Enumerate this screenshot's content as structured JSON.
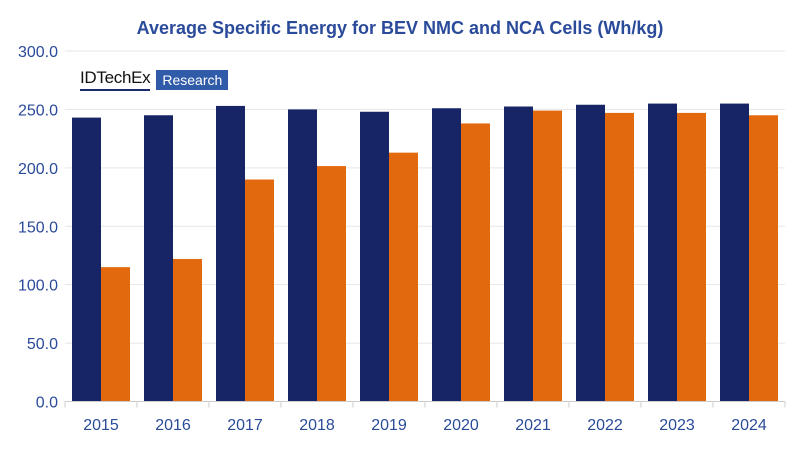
{
  "chart_data": {
    "type": "bar",
    "title": "Average Specific Energy for BEV NMC and NCA Cells (Wh/kg)",
    "xlabel": "",
    "ylabel": "",
    "categories": [
      "2015",
      "2016",
      "2017",
      "2018",
      "2019",
      "2020",
      "2021",
      "2022",
      "2023",
      "2024"
    ],
    "series": [
      {
        "color": "#172566",
        "values": [
          243,
          245,
          253,
          250,
          248,
          251,
          252.5,
          254,
          255,
          255
        ]
      },
      {
        "color": "#e2690d",
        "values": [
          115,
          122,
          190,
          201.5,
          213,
          238,
          249,
          247,
          247,
          245
        ]
      }
    ],
    "ylim": [
      0,
      300
    ],
    "yticks": [
      "0.0",
      "50.0",
      "100.0",
      "150.0",
      "200.0",
      "250.0",
      "300.0"
    ],
    "grid": true,
    "legend": "none"
  },
  "logo": {
    "brand": "IDTechEx",
    "tag": "Research"
  }
}
